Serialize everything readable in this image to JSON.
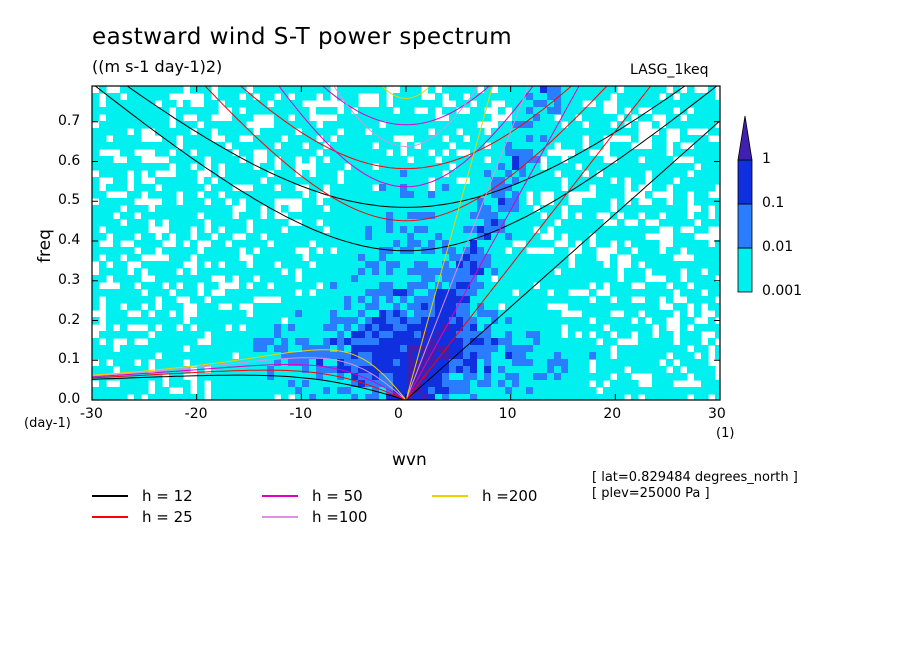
{
  "chart_data": {
    "type": "heatmap",
    "title": "eastward wind S-T power spectrum",
    "subtitle": "((m s-1 day-1)2)",
    "model_tag": "LASG_1keq",
    "xlabel": "wvn",
    "ylabel": "freq",
    "x_units": "(1)",
    "y_units": "(day-1)",
    "xlim": [
      -30,
      30
    ],
    "ylim": [
      0,
      0.79
    ],
    "x_ticks": [
      "-30",
      "-20",
      "-10",
      "0",
      "10",
      "20",
      "30"
    ],
    "y_ticks": [
      "0.0",
      "0.1",
      "0.2",
      "0.3",
      "0.4",
      "0.5",
      "0.6",
      "0.7"
    ],
    "contour_levels": [
      "0.001",
      "0.01",
      "0.1",
      "1"
    ],
    "level_colors": [
      "#00f0f0",
      "#2a7dff",
      "#1030e0",
      "#4020b0"
    ],
    "dispersion_curves": [
      {
        "name": "h = 12",
        "h": 12,
        "color": "#000000"
      },
      {
        "name": "h = 25",
        "h": 25,
        "color": "#ff0000"
      },
      {
        "name": "h = 50",
        "h": 50,
        "color": "#e000c0"
      },
      {
        "name": "h =100",
        "h": 100,
        "color": "#e090e0"
      },
      {
        "name": "h =200",
        "h": 200,
        "color": "#f0d000"
      }
    ],
    "info": [
      "[ lat=0.829484 degrees_north ]",
      "[ plev=25000 Pa ]"
    ]
  }
}
